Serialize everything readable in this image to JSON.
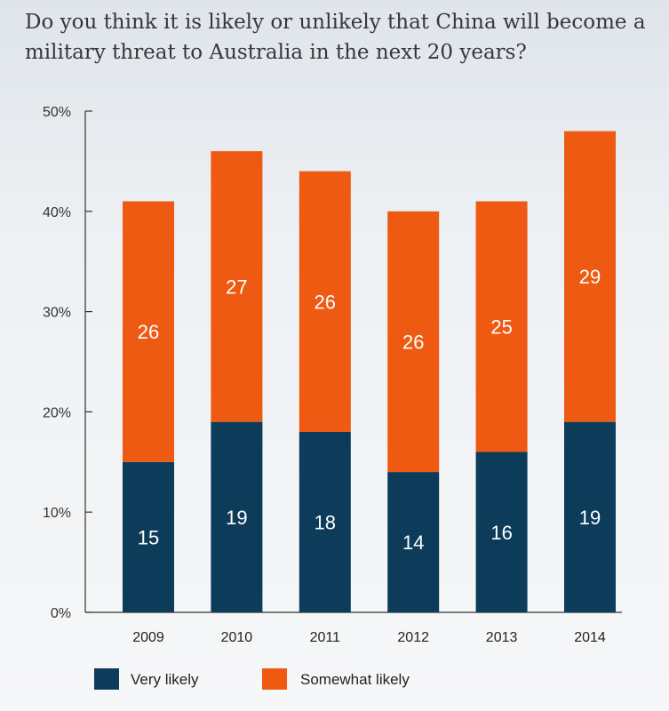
{
  "title": "Do you think it is likely or unlikely that China will become a military threat to Australia in the next 20 years?",
  "colors": {
    "very_likely": "#0c3c5a",
    "somewhat_likely": "#ee5a12",
    "axis": "#333333"
  },
  "chart_data": {
    "type": "bar",
    "stacked": true,
    "categories": [
      "2009",
      "2010",
      "2011",
      "2012",
      "2013",
      "2014"
    ],
    "series": [
      {
        "name": "Very likely",
        "values": [
          15,
          19,
          18,
          14,
          16,
          19
        ]
      },
      {
        "name": "Somewhat likely",
        "values": [
          26,
          27,
          26,
          26,
          25,
          29
        ]
      }
    ],
    "ylim": [
      0,
      50
    ],
    "yticks": [
      "0%",
      "10%",
      "20%",
      "30%",
      "40%",
      "50%"
    ],
    "xlabel": "",
    "ylabel": "",
    "legend_position": "bottom-left",
    "grid": false
  }
}
